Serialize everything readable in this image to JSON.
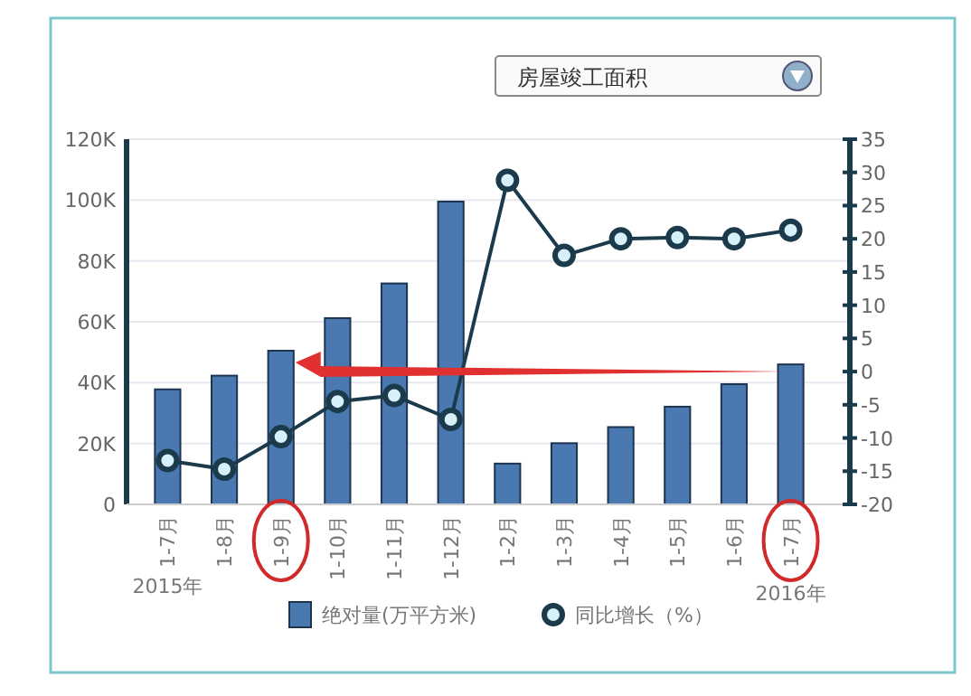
{
  "chart_data": {
    "type": "bar",
    "categories": [
      "1-7月",
      "1-8月",
      "1-9月",
      "1-10月",
      "1-11月",
      "1-12月",
      "1-2月",
      "1-3月",
      "1-4月",
      "1-5月",
      "1-6月",
      "1-7月"
    ],
    "series": [
      {
        "name": "绝对量(万平方米)",
        "color": "#4a78b0",
        "values": [
          37800,
          42300,
          50500,
          61200,
          72600,
          99500,
          13400,
          20100,
          25400,
          32100,
          39500,
          46000
        ]
      },
      {
        "name": "同比增长（%）",
        "type": "line",
        "axis": "y2",
        "color": "#1b3a4b",
        "marker": "circle",
        "values": [
          -13.4,
          -14.7,
          -9.8,
          -4.5,
          -3.6,
          -7.2,
          28.8,
          17.5,
          20.0,
          20.2,
          20.0,
          21.3
        ]
      }
    ],
    "ylim": [
      0,
      120000
    ],
    "yticks": [
      0,
      {
        "value": 20000,
        "label": "20K"
      },
      {
        "value": 40000,
        "label": "40K"
      },
      {
        "value": 60000,
        "label": "60K"
      },
      {
        "value": 80000,
        "label": "80K"
      },
      {
        "value": 100000,
        "label": "100K"
      },
      {
        "value": 120000,
        "label": "120K"
      }
    ],
    "y2lim": [
      -20,
      35
    ],
    "y2ticks": [
      -20,
      -15,
      -10,
      -5,
      0,
      5,
      10,
      15,
      20,
      25,
      30,
      35
    ],
    "grid": "y",
    "legend": "bottom",
    "annotations": [
      "房屋竣工面积",
      "2015年",
      "2016年"
    ]
  }
}
